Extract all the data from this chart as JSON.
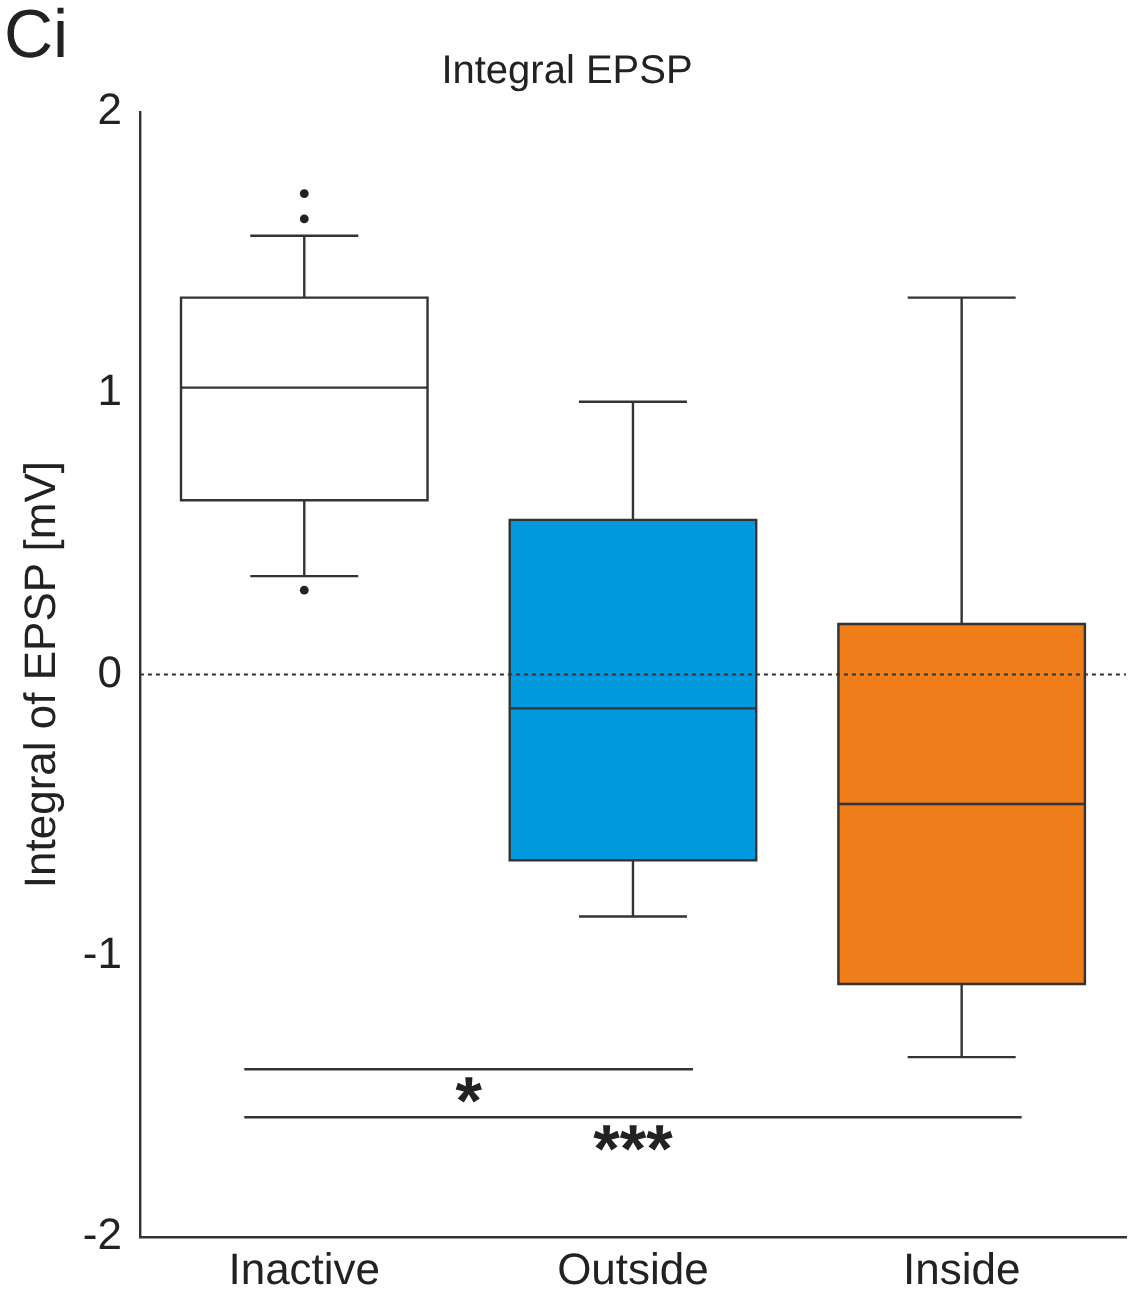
{
  "chart_data": {
    "type": "box",
    "title": "Integral EPSP",
    "ylabel": "Integral of EPSP [mV]",
    "categories": [
      "Inactive",
      "Outside",
      "Inside"
    ],
    "colors": [
      "#ffffff",
      "#0099dd",
      "#ee7d1a"
    ],
    "boxes": [
      {
        "low": 0.35,
        "q1": 0.62,
        "median": 1.02,
        "q3": 1.34,
        "high": 1.56,
        "outliers": [
          1.71,
          1.62,
          0.3
        ]
      },
      {
        "low": -0.86,
        "q1": -0.66,
        "median": -0.12,
        "q3": 0.55,
        "high": 0.97
      },
      {
        "low": -1.36,
        "q1": -1.1,
        "median": -0.46,
        "q3": 0.18,
        "high": 1.34
      }
    ],
    "ylim": [
      -2,
      2
    ],
    "yticks": [
      -2,
      -1,
      0,
      1,
      2
    ],
    "ref_lines": [
      {
        "axis": "y",
        "value": 0,
        "line_style": "dotted"
      }
    ],
    "annotations": [
      "Ci",
      "*",
      "***"
    ],
    "grid": false,
    "legend": false
  }
}
